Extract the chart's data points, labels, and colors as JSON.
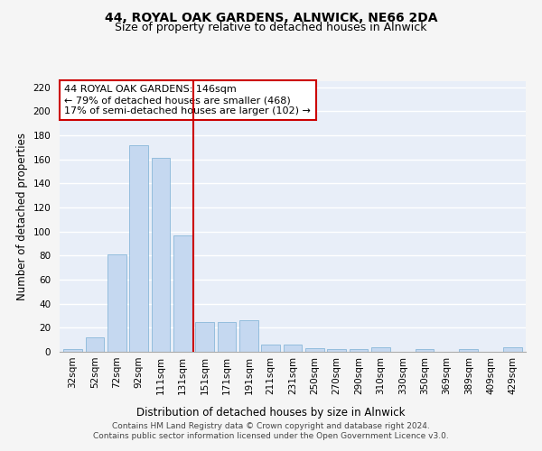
{
  "title1": "44, ROYAL OAK GARDENS, ALNWICK, NE66 2DA",
  "title2": "Size of property relative to detached houses in Alnwick",
  "xlabel": "Distribution of detached houses by size in Alnwick",
  "ylabel": "Number of detached properties",
  "bar_labels": [
    "32sqm",
    "52sqm",
    "72sqm",
    "92sqm",
    "111sqm",
    "131sqm",
    "151sqm",
    "171sqm",
    "191sqm",
    "211sqm",
    "231sqm",
    "250sqm",
    "270sqm",
    "290sqm",
    "310sqm",
    "330sqm",
    "350sqm",
    "369sqm",
    "389sqm",
    "409sqm",
    "429sqm"
  ],
  "bar_values": [
    2,
    12,
    81,
    172,
    161,
    97,
    25,
    25,
    26,
    6,
    6,
    3,
    2,
    2,
    4,
    0,
    2,
    0,
    2,
    0,
    4
  ],
  "bar_color": "#c5d8f0",
  "bar_edge_color": "#7aafd4",
  "property_line_x": 5.5,
  "annotation_title": "44 ROYAL OAK GARDENS: 146sqm",
  "annotation_line1": "← 79% of detached houses are smaller (468)",
  "annotation_line2": "17% of semi-detached houses are larger (102) →",
  "annotation_box_color": "#ffffff",
  "annotation_box_edge_color": "#cc0000",
  "line_color": "#cc0000",
  "ylim": [
    0,
    225
  ],
  "yticks": [
    0,
    20,
    40,
    60,
    80,
    100,
    120,
    140,
    160,
    180,
    200,
    220
  ],
  "footer": "Contains HM Land Registry data © Crown copyright and database right 2024.\nContains public sector information licensed under the Open Government Licence v3.0.",
  "background_color": "#e8eef8",
  "grid_color": "#ffffff",
  "fig_background": "#f5f5f5",
  "title_fontsize": 10,
  "subtitle_fontsize": 9,
  "axis_label_fontsize": 8.5,
  "tick_fontsize": 7.5,
  "annotation_fontsize": 8,
  "footer_fontsize": 6.5
}
